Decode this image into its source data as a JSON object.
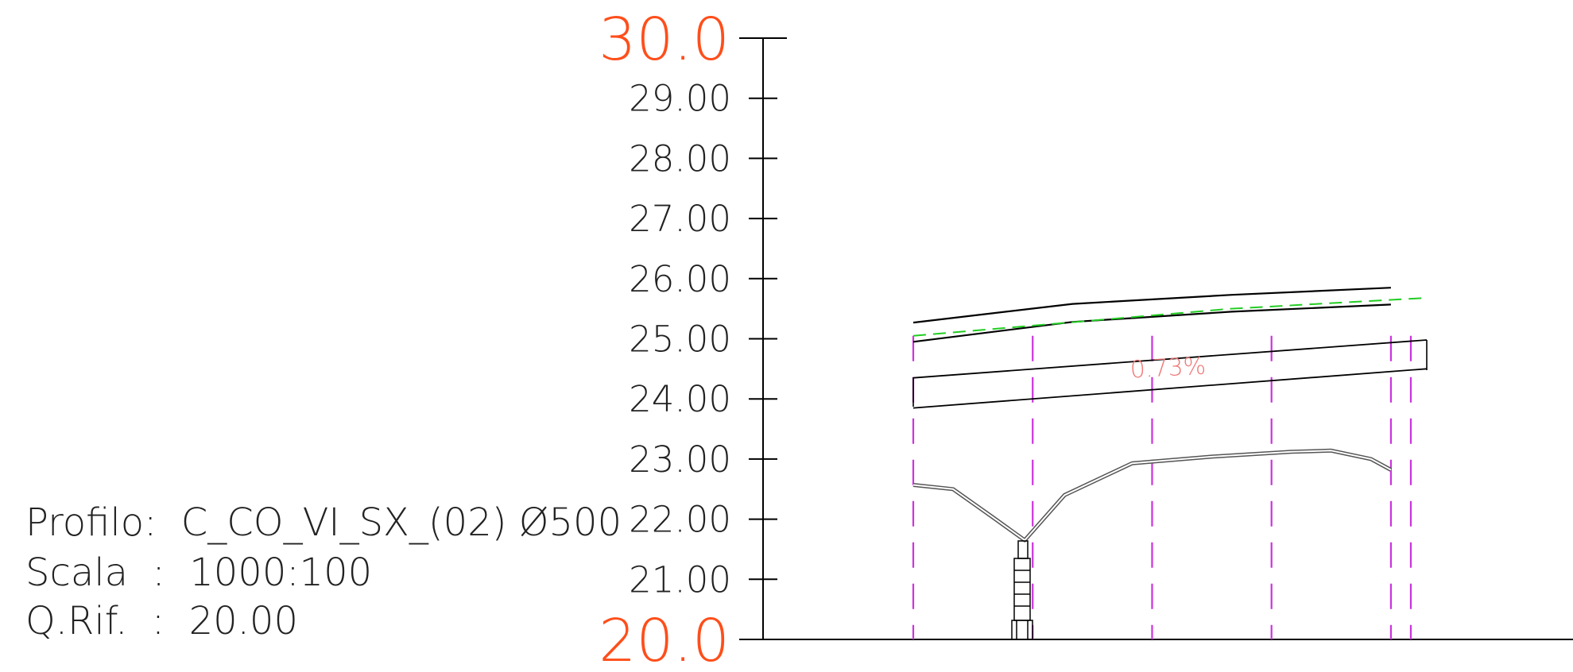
{
  "profile_info": {
    "line1": "Profilo:  C_CO_VI_SX_(02) Ø500",
    "line2": "Scala  :  1000:100",
    "line3": "Q.Rif.  :  20.00"
  },
  "y_axis": {
    "min": 20,
    "max": 30,
    "min_label": "20.0",
    "max_label": "30.0",
    "tick_labels": [
      "21.00",
      "22.00",
      "23.00",
      "24.00",
      "25.00",
      "26.00",
      "27.00",
      "28.00",
      "29.00"
    ],
    "end_label_color": "#ff4e1a"
  },
  "slope_label": "0.73%",
  "colors": {
    "terrain_line": "#000000",
    "design_grade_dashed": "#22cc22",
    "station_markers": "#cc33dd",
    "slope_text": "#f07a7a"
  },
  "chart_data": {
    "type": "line",
    "title": "",
    "xlabel": "",
    "ylabel": "",
    "ylim": [
      20,
      30
    ],
    "grid": false,
    "series": [
      {
        "role": "ground-top",
        "points": [
          [
            0,
            25.27
          ],
          [
            40,
            25.58
          ],
          [
            80,
            25.73
          ],
          [
            120,
            25.85
          ]
        ]
      },
      {
        "role": "ground-bottom",
        "points": [
          [
            0,
            24.95
          ],
          [
            40,
            25.28
          ],
          [
            80,
            25.45
          ],
          [
            120,
            25.57
          ]
        ]
      },
      {
        "role": "design-grade",
        "style": "dashed",
        "points": [
          [
            0,
            25.05
          ],
          [
            80,
            25.5
          ],
          [
            129,
            25.68
          ]
        ]
      },
      {
        "role": "pipe-top",
        "points": [
          [
            0,
            24.35
          ],
          [
            129,
            24.98
          ]
        ]
      },
      {
        "role": "pipe-bottom",
        "points": [
          [
            0,
            23.85
          ],
          [
            129,
            24.5
          ]
        ]
      },
      {
        "role": "lower-profile",
        "points": [
          [
            0,
            22.57
          ],
          [
            10,
            22.5
          ],
          [
            20,
            22.03
          ],
          [
            28,
            21.65
          ],
          [
            38,
            22.4
          ],
          [
            55,
            22.93
          ],
          [
            75,
            23.04
          ],
          [
            95,
            23.12
          ],
          [
            105,
            23.14
          ],
          [
            115,
            23.0
          ],
          [
            120,
            22.82
          ]
        ]
      }
    ],
    "station_x": [
      0,
      30,
      60,
      90,
      120,
      125
    ]
  }
}
